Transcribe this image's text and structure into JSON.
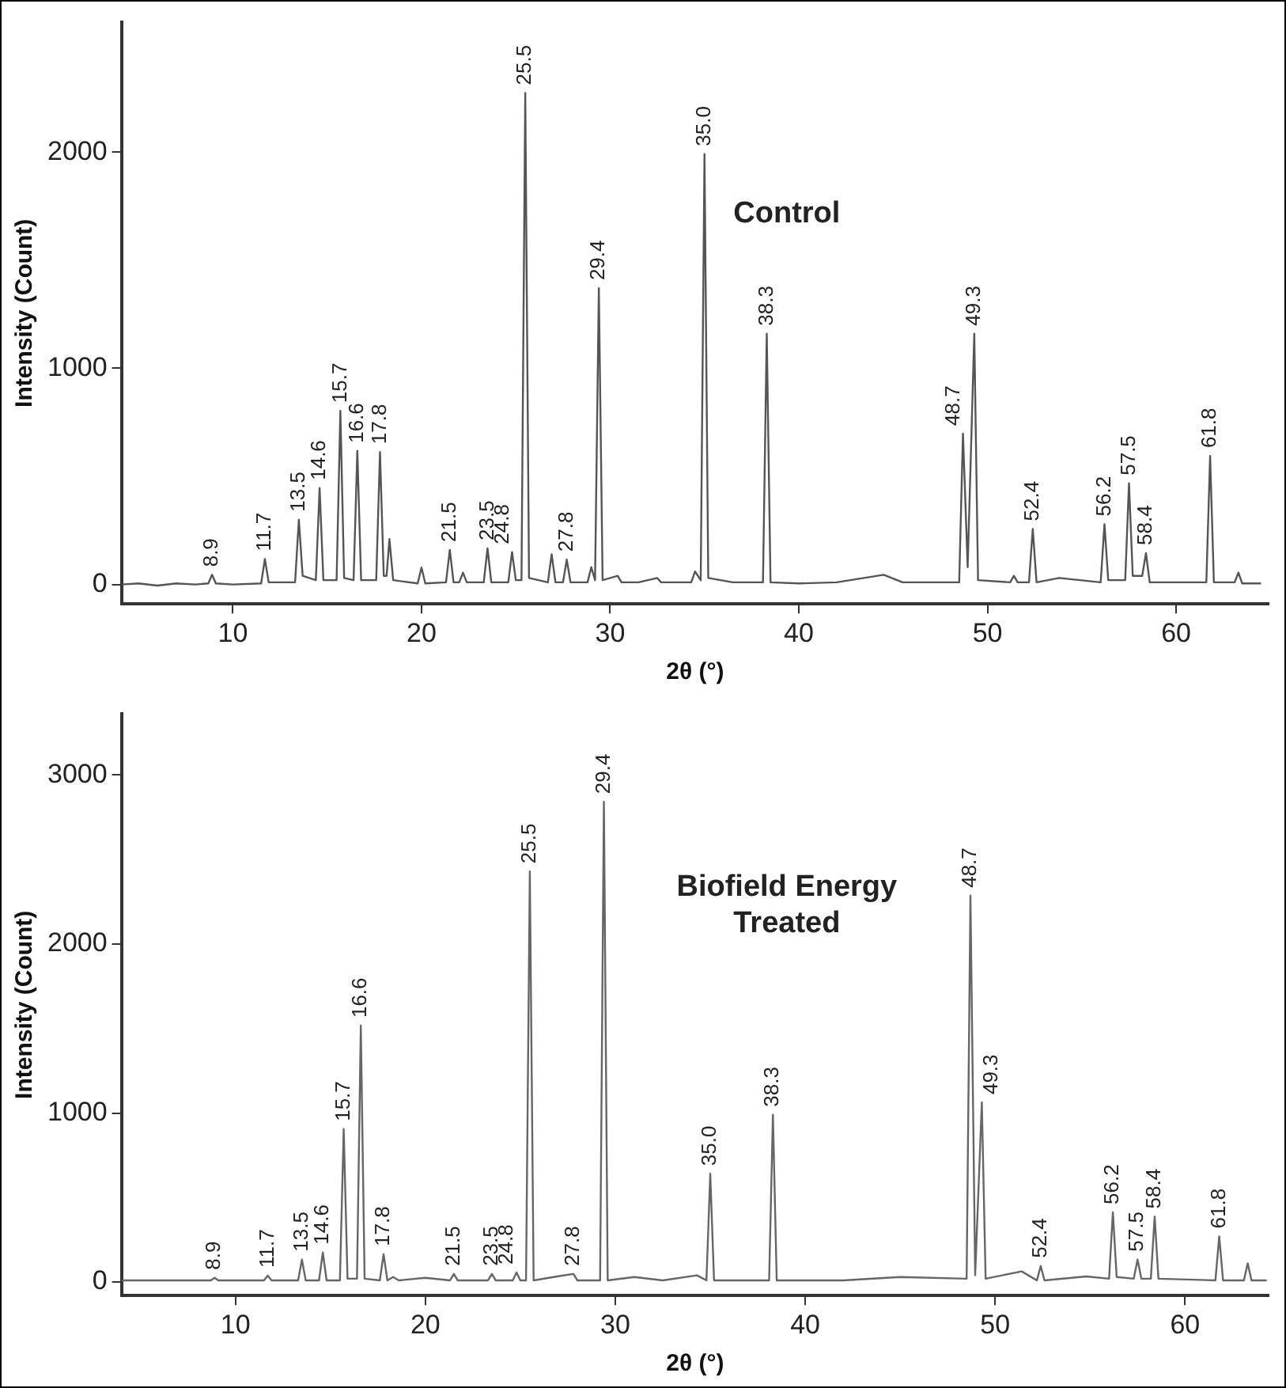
{
  "chart_data": [
    {
      "type": "line",
      "xlabel": "2θ (°)",
      "ylabel": "Intensity (Count)",
      "color": "#555555",
      "grid": false,
      "legend": false,
      "xlim": [
        4.1,
        64.9
      ],
      "xticks": [
        10,
        20,
        30,
        40,
        50,
        60
      ],
      "ylim": [
        -90,
        2600
      ],
      "yticks": [
        0,
        1000,
        2000
      ],
      "x": [
        4.1,
        5,
        6,
        7,
        8,
        8.7,
        8.9,
        9.1,
        10,
        11.5,
        11.7,
        11.9,
        13.3,
        13.5,
        13.7,
        14.4,
        14.6,
        14.8,
        15.5,
        15.7,
        15.9,
        16.4,
        16.6,
        16.8,
        17.6,
        17.8,
        18.0,
        18.15,
        18.3,
        18.5,
        19.8,
        20.0,
        20.2,
        21.3,
        21.5,
        21.7,
        22.0,
        22.2,
        22.4,
        23.3,
        23.5,
        23.7,
        24.6,
        24.8,
        25.0,
        25.3,
        25.5,
        25.7,
        26.7,
        26.9,
        27.1,
        27.5,
        27.7,
        27.9,
        28.8,
        29.0,
        29.2,
        29.4,
        29.6,
        30.4,
        30.6,
        31.5,
        32.5,
        32.7,
        34.3,
        34.5,
        34.8,
        35.0,
        35.2,
        36.5,
        38.1,
        38.3,
        38.5,
        40,
        42,
        44.5,
        45.5,
        48.5,
        48.7,
        48.95,
        49.3,
        49.5,
        51.2,
        51.4,
        51.6,
        52.2,
        52.4,
        52.6,
        53.8,
        56.0,
        56.2,
        56.4,
        57.3,
        57.5,
        57.7,
        58.2,
        58.4,
        58.6,
        61.6,
        61.8,
        62.0,
        63.1,
        63.3,
        63.5,
        64.5
      ],
      "values": [
        0,
        5,
        -5,
        5,
        0,
        5,
        45,
        5,
        0,
        5,
        118,
        10,
        10,
        300,
        40,
        20,
        446,
        20,
        20,
        803,
        30,
        20,
        618,
        20,
        20,
        613,
        40,
        40,
        210,
        20,
        5,
        78,
        5,
        10,
        160,
        10,
        10,
        55,
        10,
        10,
        167,
        10,
        10,
        150,
        20,
        20,
        2274,
        30,
        10,
        140,
        10,
        10,
        115,
        10,
        10,
        80,
        20,
        1371,
        20,
        40,
        10,
        10,
        30,
        10,
        10,
        60,
        20,
        1991,
        30,
        10,
        10,
        1160,
        10,
        5,
        10,
        45,
        10,
        10,
        698,
        80,
        1160,
        20,
        10,
        40,
        10,
        10,
        257,
        10,
        30,
        10,
        279,
        20,
        20,
        468,
        40,
        40,
        145,
        10,
        10,
        595,
        10,
        10,
        55,
        5,
        5
      ],
      "annotations": [
        "Control",
        {
          "text": "8.9",
          "x": 8.9,
          "y": 45
        },
        {
          "text": "11.7",
          "x": 11.7,
          "y": 118
        },
        {
          "text": "13.5",
          "x": 13.5,
          "y": 300
        },
        {
          "text": "14.6",
          "x": 14.6,
          "y": 446
        },
        {
          "text": "15.7",
          "x": 15.7,
          "y": 803
        },
        {
          "text": "16.6",
          "x": 16.6,
          "y": 618
        },
        {
          "text": "17.8",
          "x": 17.8,
          "y": 613
        },
        {
          "text": "21.5",
          "x": 21.5,
          "y": 160
        },
        {
          "text": "23.5",
          "x": 23.5,
          "y": 167
        },
        {
          "text": "24.8",
          "x": 24.8,
          "y": 150
        },
        {
          "text": "25.5",
          "x": 25.5,
          "y": 2274
        },
        {
          "text": "27.8",
          "x": 27.7,
          "y": 115
        },
        {
          "text": "29.4",
          "x": 29.4,
          "y": 1371
        },
        {
          "text": "35.0",
          "x": 35.0,
          "y": 1991
        },
        {
          "text": "38.3",
          "x": 38.3,
          "y": 1160
        },
        {
          "text": "48.7",
          "x": 48.7,
          "y": 698
        },
        {
          "text": "49.3",
          "x": 49.3,
          "y": 1160
        },
        {
          "text": "52.4",
          "x": 52.4,
          "y": 257
        },
        {
          "text": "56.2",
          "x": 56.2,
          "y": 279
        },
        {
          "text": "57.5",
          "x": 57.5,
          "y": 468
        },
        {
          "text": "58.4",
          "x": 58.4,
          "y": 145
        },
        {
          "text": "61.8",
          "x": 61.8,
          "y": 595
        }
      ]
    },
    {
      "type": "line",
      "xlabel": "2θ (°)",
      "ylabel": "Intensity (Count)",
      "color": "#666666",
      "grid": false,
      "legend": false,
      "xlim": [
        4.0,
        64.4
      ],
      "xticks": [
        10,
        20,
        30,
        40,
        50,
        60
      ],
      "ylim": [
        -80,
        3360
      ],
      "yticks": [
        0,
        1000,
        2000,
        3000
      ],
      "x": [
        4.0,
        5,
        6,
        7,
        8,
        8.7,
        8.9,
        9.1,
        10,
        11.5,
        11.7,
        11.9,
        13.3,
        13.5,
        13.7,
        14.4,
        14.6,
        14.8,
        15.5,
        15.7,
        15.9,
        16.4,
        16.6,
        16.8,
        17.6,
        17.8,
        18.0,
        18.3,
        18.6,
        20.0,
        21.3,
        21.5,
        21.7,
        23.3,
        23.5,
        23.7,
        24.6,
        24.8,
        25.0,
        25.3,
        25.5,
        25.7,
        27.2,
        27.8,
        28.0,
        29.2,
        29.4,
        29.6,
        31.0,
        32.5,
        34.3,
        34.8,
        35.0,
        35.2,
        36.5,
        38.1,
        38.3,
        38.5,
        42,
        45.0,
        48.5,
        48.7,
        48.95,
        49.3,
        49.5,
        51.4,
        52.2,
        52.4,
        52.6,
        54.8,
        56.0,
        56.2,
        56.4,
        57.3,
        57.5,
        57.7,
        58.2,
        58.4,
        58.6,
        61.6,
        61.8,
        62.0,
        63.1,
        63.3,
        63.5,
        64.3
      ],
      "values": [
        10,
        10,
        10,
        10,
        10,
        10,
        25,
        10,
        10,
        10,
        38,
        10,
        10,
        133,
        10,
        10,
        175,
        10,
        10,
        905,
        20,
        20,
        1517,
        20,
        10,
        165,
        10,
        30,
        10,
        25,
        10,
        48,
        10,
        10,
        48,
        10,
        10,
        57,
        10,
        10,
        2429,
        10,
        38,
        48,
        10,
        10,
        2841,
        10,
        30,
        10,
        40,
        10,
        641,
        10,
        10,
        10,
        990,
        10,
        10,
        30,
        20,
        2286,
        40,
        1063,
        20,
        63,
        10,
        95,
        10,
        33,
        20,
        413,
        30,
        20,
        133,
        20,
        20,
        387,
        20,
        10,
        270,
        10,
        10,
        111,
        10,
        10
      ],
      "annotations": [
        "Biofield Energy Treated",
        {
          "text": "8.9",
          "x": 8.9,
          "y": 25
        },
        {
          "text": "11.7",
          "x": 11.7,
          "y": 38
        },
        {
          "text": "13.5",
          "x": 13.5,
          "y": 133
        },
        {
          "text": "14.6",
          "x": 14.6,
          "y": 175
        },
        {
          "text": "15.7",
          "x": 15.7,
          "y": 905
        },
        {
          "text": "16.6",
          "x": 16.6,
          "y": 1517
        },
        {
          "text": "17.8",
          "x": 17.8,
          "y": 165
        },
        {
          "text": "21.5",
          "x": 21.5,
          "y": 48
        },
        {
          "text": "23.5",
          "x": 23.5,
          "y": 48
        },
        {
          "text": "24.8",
          "x": 24.8,
          "y": 57
        },
        {
          "text": "25.5",
          "x": 25.5,
          "y": 2429
        },
        {
          "text": "27.8",
          "x": 27.8,
          "y": 48
        },
        {
          "text": "29.4",
          "x": 29.4,
          "y": 2841
        },
        {
          "text": "35.0",
          "x": 35.0,
          "y": 641
        },
        {
          "text": "38.3",
          "x": 38.3,
          "y": 990
        },
        {
          "text": "48.7",
          "x": 48.7,
          "y": 2286
        },
        {
          "text": "49.3",
          "x": 49.3,
          "y": 1063
        },
        {
          "text": "52.4",
          "x": 52.4,
          "y": 95
        },
        {
          "text": "56.2",
          "x": 56.2,
          "y": 413
        },
        {
          "text": "57.5",
          "x": 57.5,
          "y": 133
        },
        {
          "text": "58.4",
          "x": 58.4,
          "y": 387
        },
        {
          "text": "61.8",
          "x": 61.8,
          "y": 270
        }
      ]
    }
  ]
}
